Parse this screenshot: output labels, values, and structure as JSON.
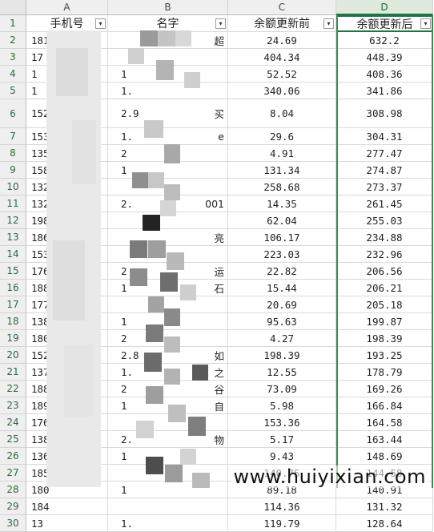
{
  "columns": [
    "A",
    "B",
    "C",
    "D"
  ],
  "headers": {
    "phone": "手机号",
    "name": "名字",
    "before": "余额更新前",
    "after": "余额更新后"
  },
  "filter_icon": "filter-dropdown-icon",
  "rows": [
    {
      "n": "2",
      "phone": "181",
      "name": "",
      "nameExtra": "超",
      "before": "24.69",
      "after": "632.2"
    },
    {
      "n": "3",
      "phone": "17",
      "name": "",
      "nameExtra": "",
      "before": "404.34",
      "after": "448.39"
    },
    {
      "n": "4",
      "phone": "1",
      "name": "1",
      "nameExtra": "",
      "before": "52.52",
      "after": "408.36"
    },
    {
      "n": "5",
      "phone": "1",
      "name": "1.",
      "nameExtra": "",
      "before": "340.06",
      "after": "341.86"
    },
    {
      "n": "6",
      "phone": "152",
      "name": "2.9",
      "nameExtra": "买",
      "before": "8.04",
      "after": "308.98"
    },
    {
      "n": "7",
      "phone": "153",
      "name": "1.",
      "nameExtra": "e",
      "before": "29.6",
      "after": "304.31"
    },
    {
      "n": "8",
      "phone": "135",
      "name": "2",
      "nameExtra": "",
      "before": "4.91",
      "after": "277.47"
    },
    {
      "n": "9",
      "phone": "158",
      "name": "1",
      "nameExtra": "",
      "before": "131.34",
      "after": "274.87"
    },
    {
      "n": "10",
      "phone": "132",
      "name": "",
      "nameExtra": "",
      "before": "258.68",
      "after": "273.37"
    },
    {
      "n": "11",
      "phone": "1321",
      "name": "2.",
      "nameExtra": "001",
      "before": "14.35",
      "after": "261.45"
    },
    {
      "n": "12",
      "phone": "1989",
      "name": "",
      "nameExtra": "",
      "before": "62.04",
      "after": "255.03"
    },
    {
      "n": "13",
      "phone": "1864",
      "name": "",
      "nameExtra": "亮",
      "before": "106.17",
      "after": "234.88"
    },
    {
      "n": "14",
      "phone": "1538",
      "name": "",
      "nameExtra": "",
      "before": "223.03",
      "after": "232.96"
    },
    {
      "n": "15",
      "phone": "1760",
      "name": "2",
      "nameExtra": "运",
      "before": "22.82",
      "after": "206.56"
    },
    {
      "n": "16",
      "phone": "1885",
      "name": "1",
      "nameExtra": "石",
      "before": "15.44",
      "after": "206.21"
    },
    {
      "n": "17",
      "phone": "1775",
      "name": "",
      "nameExtra": "",
      "before": "20.69",
      "after": "205.18"
    },
    {
      "n": "18",
      "phone": "1389",
      "name": "1",
      "nameExtra": "",
      "before": "95.63",
      "after": "199.87"
    },
    {
      "n": "19",
      "phone": "1807",
      "name": "2",
      "nameExtra": "",
      "before": "4.27",
      "after": "198.39"
    },
    {
      "n": "20",
      "phone": "1525",
      "name": "2.8",
      "nameExtra": "如",
      "before": "198.39",
      "after": "193.25"
    },
    {
      "n": "21",
      "phone": "137",
      "name": "1.",
      "nameExtra": "之",
      "before": "12.55",
      "after": "178.79"
    },
    {
      "n": "22",
      "phone": "188",
      "name": "2",
      "nameExtra": "谷",
      "before": "73.09",
      "after": "169.26"
    },
    {
      "n": "23",
      "phone": "189",
      "name": "1",
      "nameExtra": "自",
      "before": "5.98",
      "after": "166.84"
    },
    {
      "n": "24",
      "phone": "176",
      "name": "",
      "nameExtra": "",
      "before": "153.36",
      "after": "164.58"
    },
    {
      "n": "25",
      "phone": "138",
      "name": "2.",
      "nameExtra": "物",
      "before": "5.17",
      "after": "163.44"
    },
    {
      "n": "26",
      "phone": "136",
      "name": "1",
      "nameExtra": "",
      "before": "9.43",
      "after": "148.69"
    },
    {
      "n": "27",
      "phone": "185",
      "name": "",
      "nameExtra": "",
      "before": "140.75",
      "after": "144.58"
    },
    {
      "n": "28",
      "phone": "180",
      "name": "1",
      "nameExtra": "",
      "before": "89.18",
      "after": "140.91"
    },
    {
      "n": "29",
      "phone": "184",
      "name": "",
      "nameExtra": "",
      "before": "114.36",
      "after": "131.32"
    },
    {
      "n": "30",
      "phone": "13",
      "name": "1.",
      "nameExtra": "",
      "before": "119.79",
      "after": "128.64"
    }
  ],
  "watermark": "www.huiyixian.com"
}
